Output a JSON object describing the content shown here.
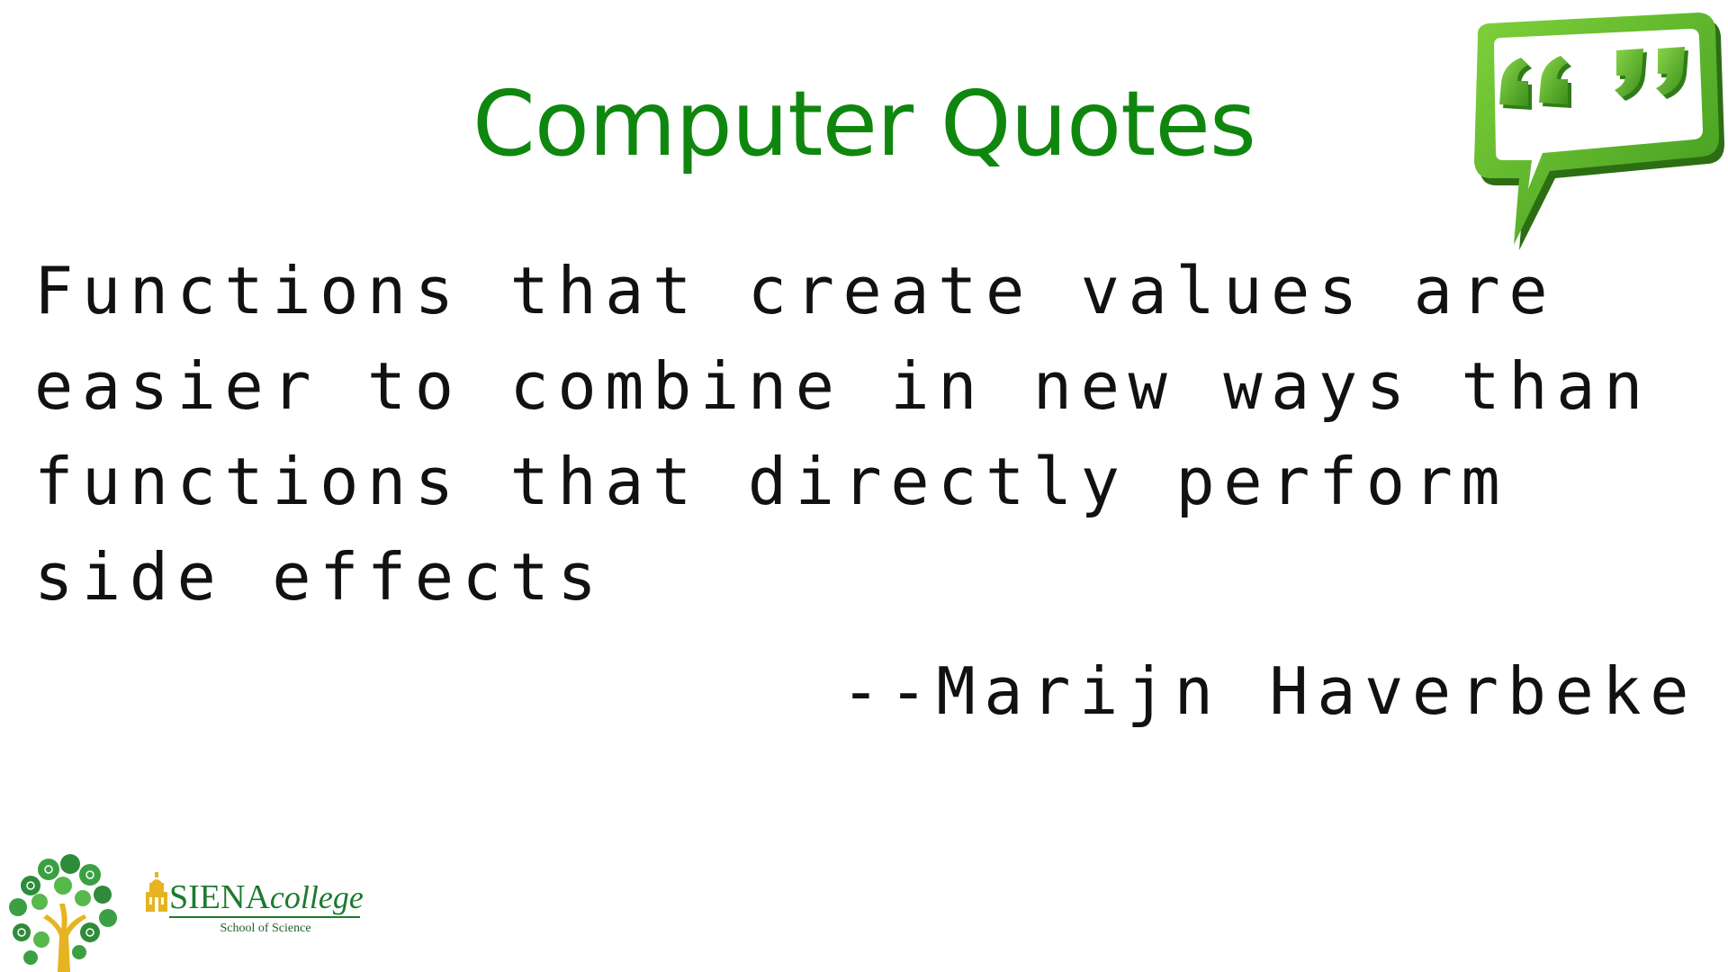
{
  "slide": {
    "title": "Computer Quotes",
    "quote": "Functions that create values are\neasier to combine in new ways than\nfunctions that directly perform\nside effects",
    "author": "--Marijn Haverbeke"
  },
  "branding": {
    "college_name": "SIENA",
    "college_suffix": "college",
    "school": "School of Science"
  },
  "colors": {
    "title": "#0f870f",
    "icon_green": "#5db82e",
    "icon_dark": "#2e7d18",
    "tree_trunk": "#e6b422",
    "logo_green": "#1b7a2f"
  },
  "icons": [
    "quote-bubble-icon",
    "science-tree-logo-icon",
    "siena-building-icon"
  ]
}
